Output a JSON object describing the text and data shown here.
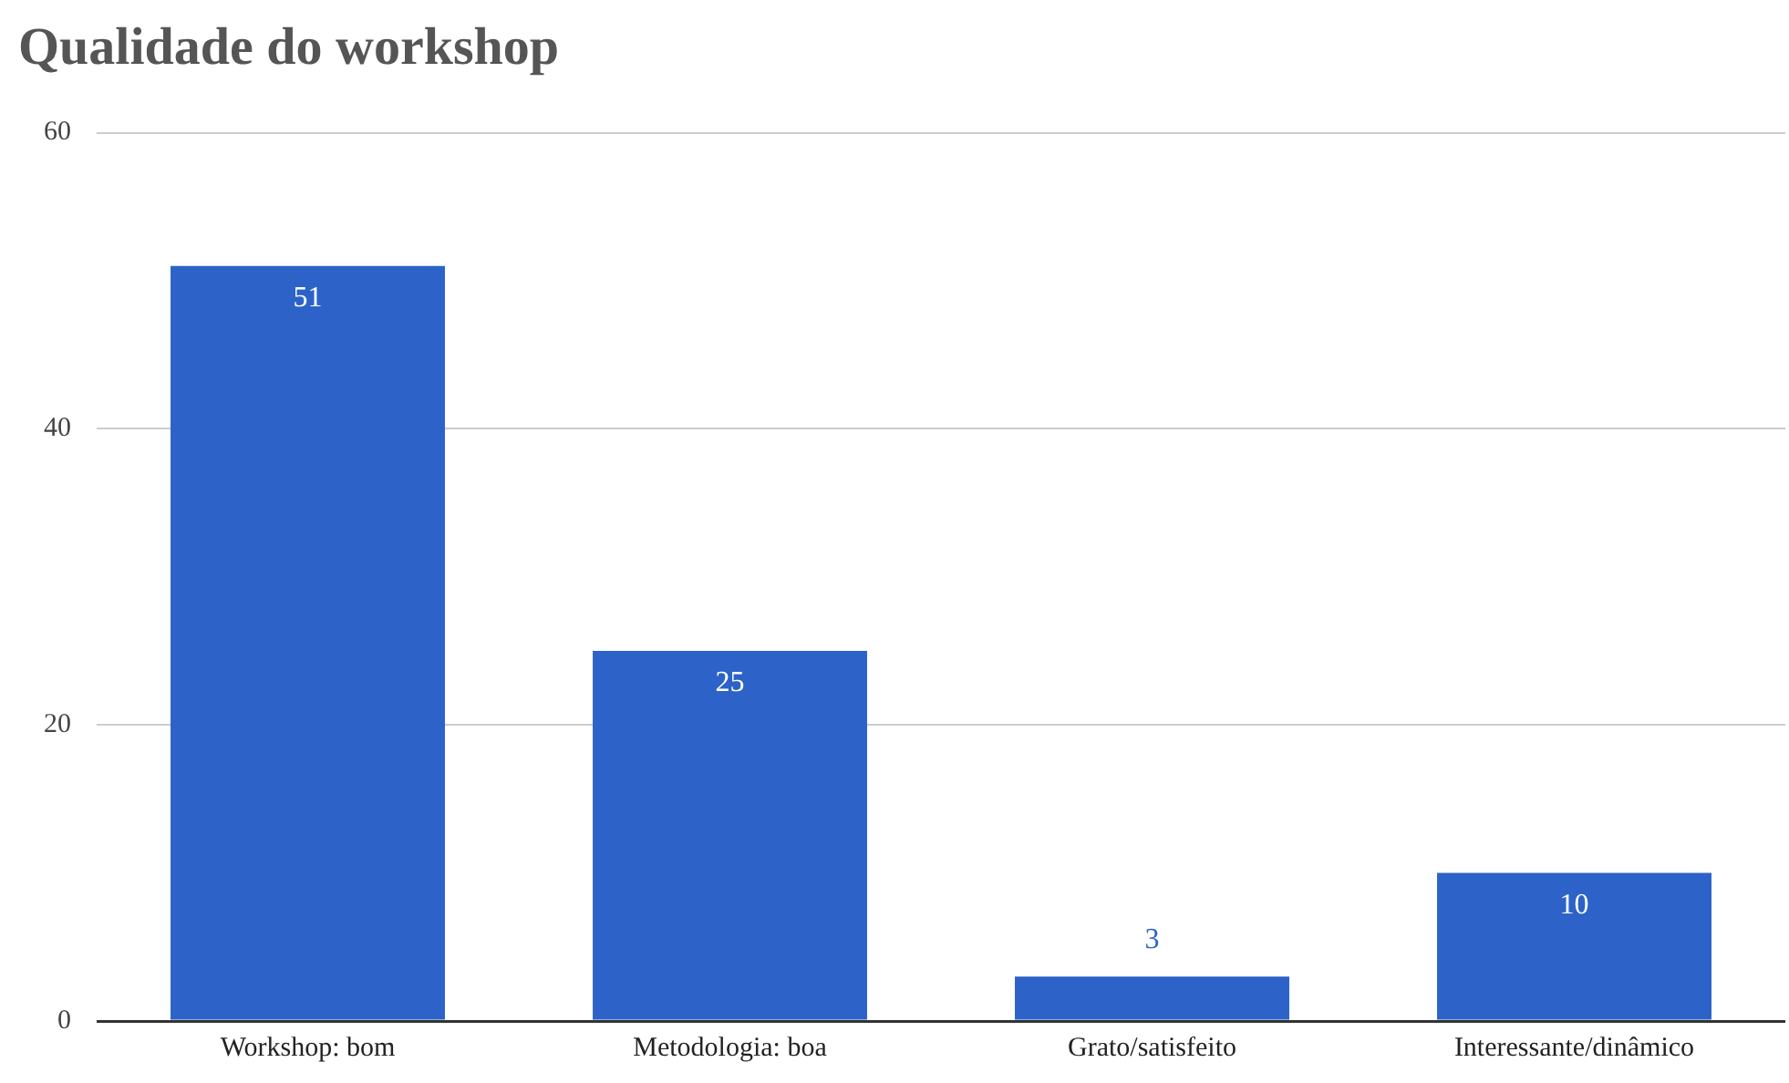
{
  "chart_data": {
    "type": "bar",
    "title": "Qualidade do workshop",
    "categories": [
      "Workshop: bom",
      "Metodologia: boa",
      "Grato/satisfeito",
      "Interessante/dinâmico"
    ],
    "values": [
      51,
      25,
      3,
      10
    ],
    "color": "#2d63c8",
    "ylim": [
      0,
      60
    ],
    "yticks": [
      0,
      20,
      40,
      60
    ],
    "grid": "y",
    "data_labels": true
  }
}
